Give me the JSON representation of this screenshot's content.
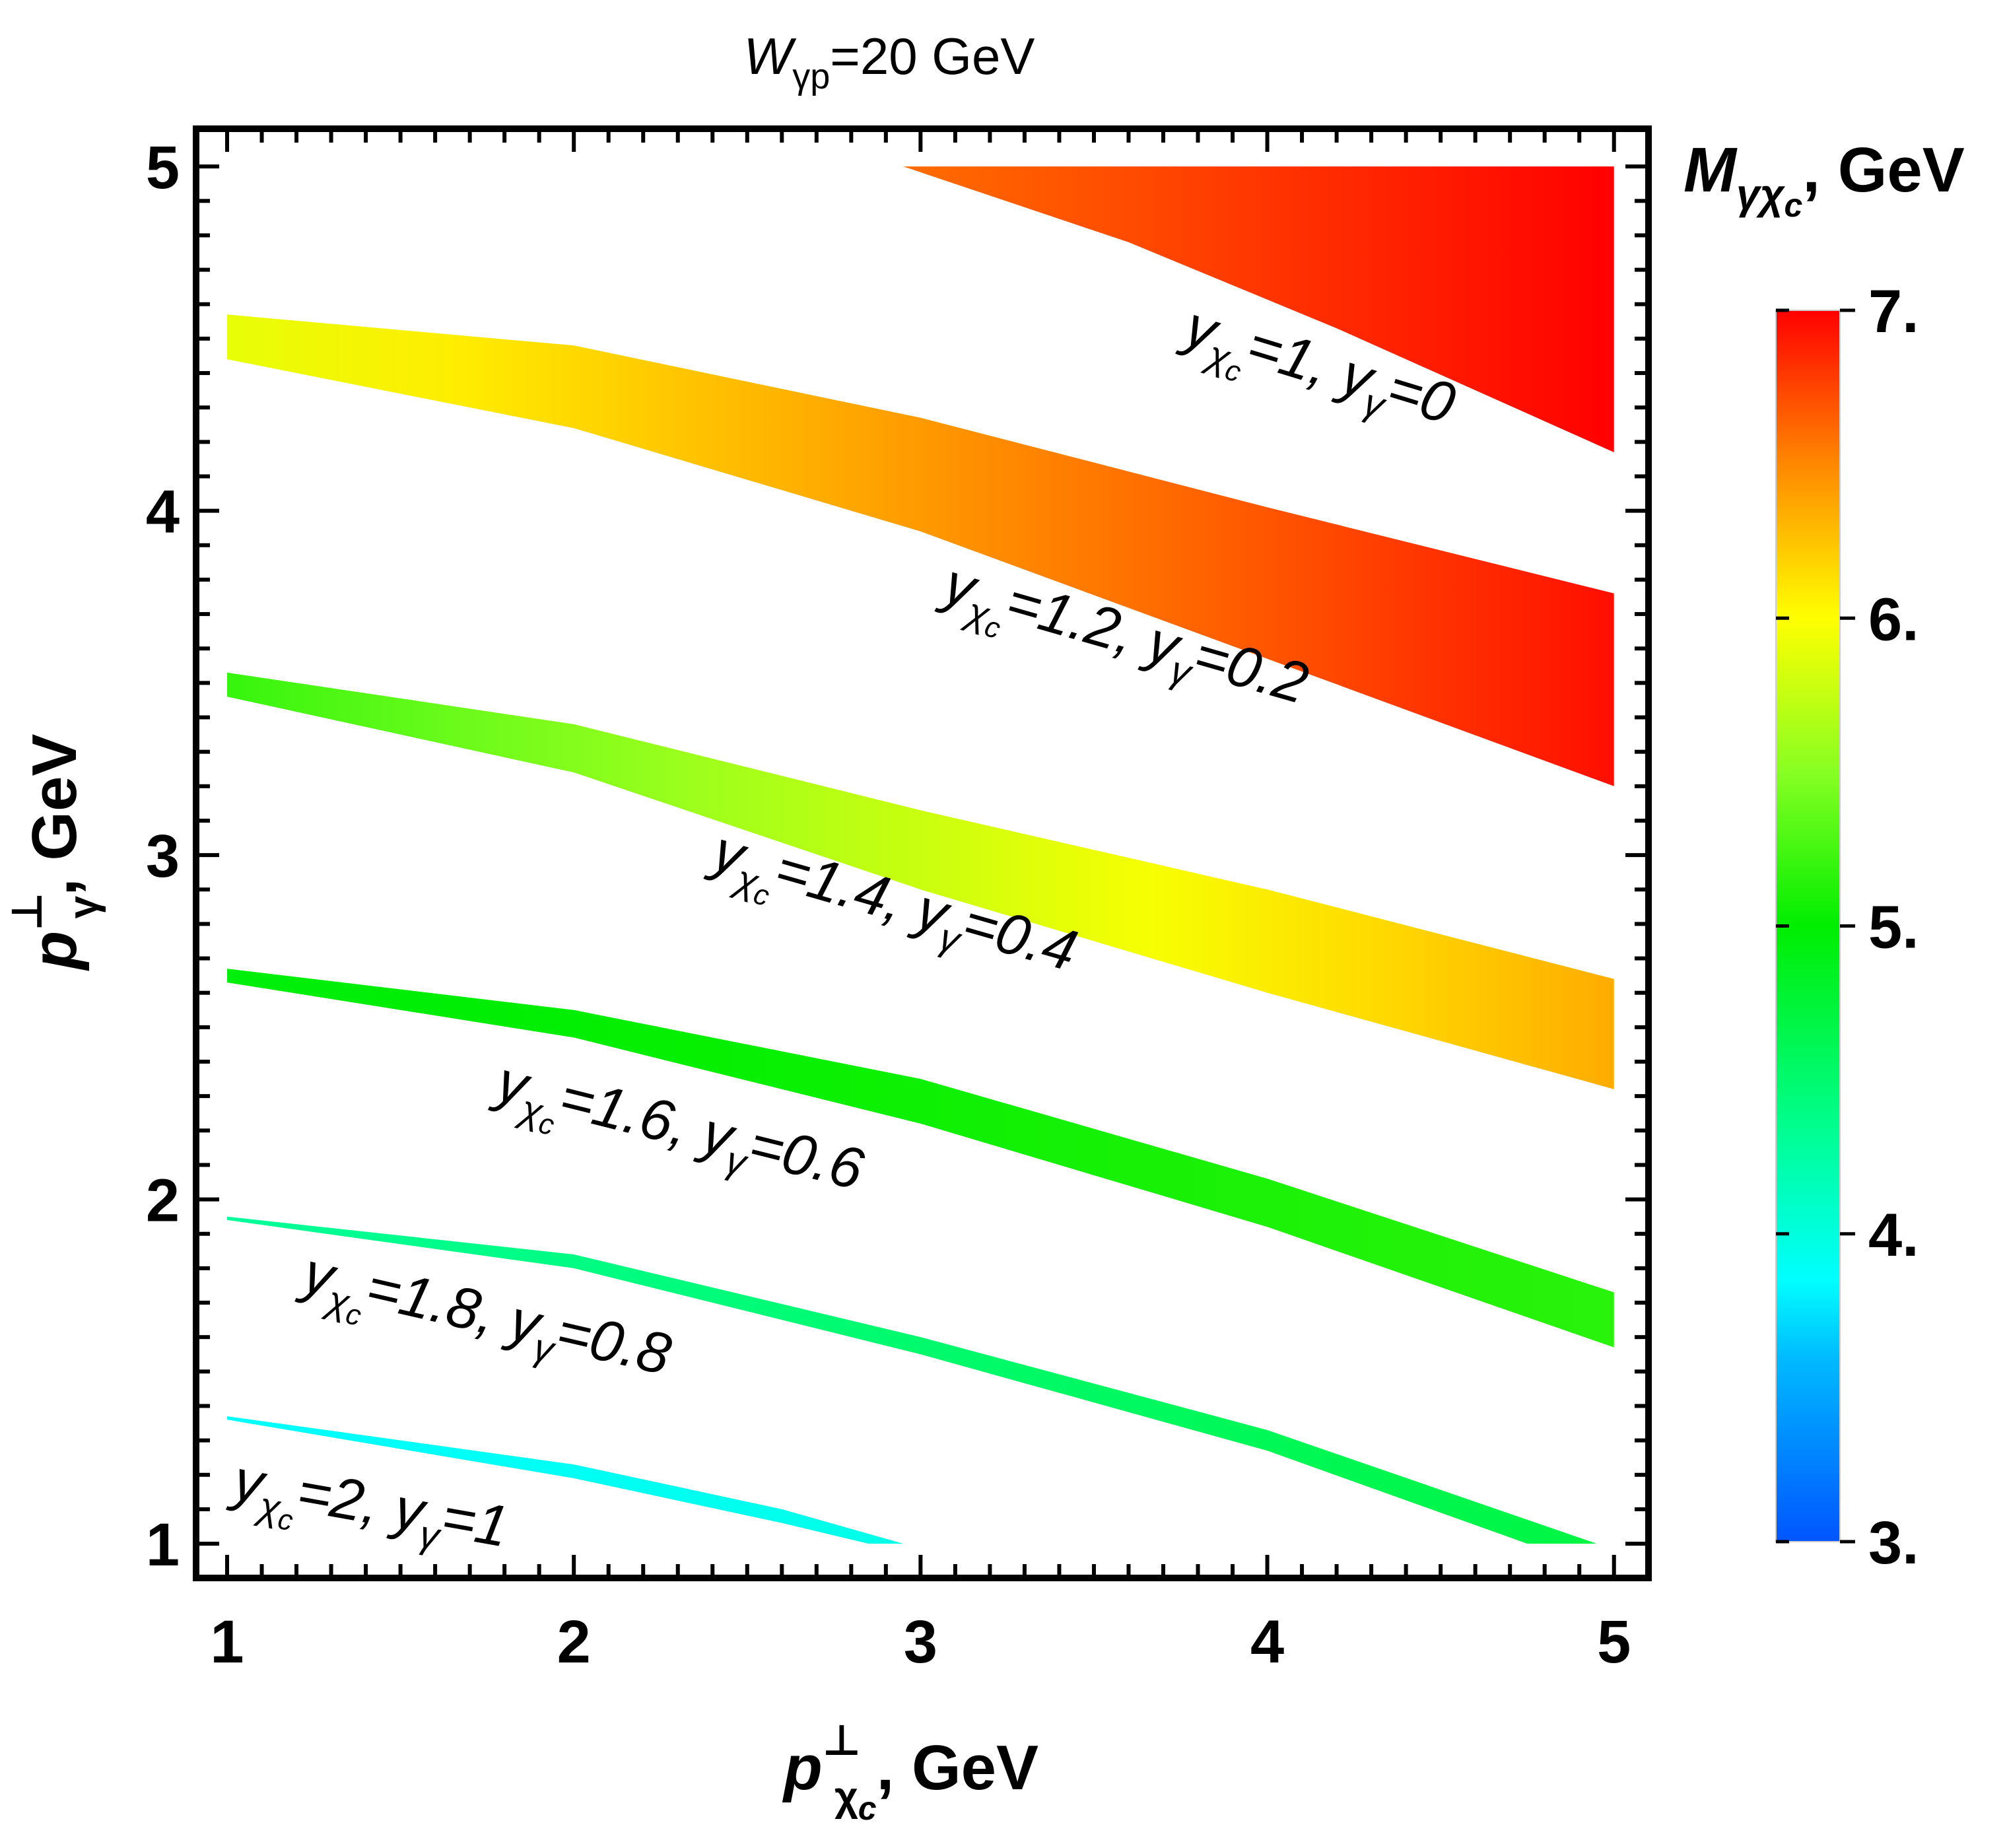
{
  "chart_data": {
    "type": "area",
    "title": "W_{γp}=20 GeV",
    "title_parts": {
      "main": "W",
      "sub": "γp",
      "rest": "=20 GeV"
    },
    "xlabel": "p⊥_{χc}, GeV",
    "xlabel_parts": {
      "main": "p",
      "sup": "⊥",
      "sub": "χ",
      "subsub": "c",
      "rest": ", GeV"
    },
    "ylabel": "p⊥_{γ}, GeV",
    "ylabel_parts": {
      "main": "p",
      "sup": "⊥",
      "sub": "γ",
      "rest": ", GeV"
    },
    "xlim": [
      0.92,
      5.09
    ],
    "ylim": [
      0.91,
      5.1
    ],
    "x_ticks": [
      1,
      2,
      3,
      4,
      5
    ],
    "x_tick_labels": [
      "1",
      "2",
      "3",
      "4",
      "5"
    ],
    "y_ticks": [
      1,
      2,
      3,
      4,
      5
    ],
    "y_tick_labels": [
      "1",
      "2",
      "3",
      "4",
      "5"
    ],
    "colorbar": {
      "title": "M_{γχc}, GeV",
      "title_parts": {
        "main": "M",
        "sub": "γχ",
        "subsub": "c",
        "rest": ", GeV"
      },
      "range": [
        3,
        7
      ],
      "ticks": [
        3,
        4,
        5,
        6,
        7
      ],
      "tick_labels": [
        "3.",
        "4.",
        "5.",
        "6.",
        "7."
      ],
      "stops": [
        {
          "value": 3.0,
          "color": "#0055ff"
        },
        {
          "value": 3.6,
          "color": "#00bbff"
        },
        {
          "value": 3.85,
          "color": "#00ffff"
        },
        {
          "value": 4.3,
          "color": "#00ff99"
        },
        {
          "value": 5.0,
          "color": "#00ee00"
        },
        {
          "value": 5.5,
          "color": "#88ff22"
        },
        {
          "value": 6.0,
          "color": "#ffff00"
        },
        {
          "value": 6.5,
          "color": "#ff8800"
        },
        {
          "value": 7.0,
          "color": "#ff0000"
        }
      ]
    },
    "bands": [
      {
        "label": "y_{χc}=1, y_{γ}=0",
        "label_parts": {
          "ychi": "1",
          "ygam": "0"
        },
        "upper": [
          [
            2.95,
            5.0
          ],
          [
            5.0,
            5.0
          ]
        ],
        "lower": [
          [
            2.95,
            5.0
          ],
          [
            3.6,
            4.78
          ],
          [
            4.2,
            4.53
          ],
          [
            5.0,
            4.17
          ]
        ],
        "mass_left": 6.6,
        "mass_right": 7.0
      },
      {
        "label": "y_{χc}=1.2, y_{γ}=0.2",
        "label_parts": {
          "ychi": "1.2",
          "ygam": "0.2"
        },
        "upper": [
          [
            1.0,
            4.57
          ],
          [
            2.0,
            4.48
          ],
          [
            3.0,
            4.27
          ],
          [
            4.0,
            4.01
          ],
          [
            5.0,
            3.76
          ]
        ],
        "lower": [
          [
            1.0,
            4.44
          ],
          [
            2.0,
            4.24
          ],
          [
            3.0,
            3.94
          ],
          [
            4.0,
            3.57
          ],
          [
            5.0,
            3.2
          ]
        ],
        "mass_left": 5.9,
        "mass_right": 6.95
      },
      {
        "label": "y_{χc}=1.4, y_{γ}=0.4",
        "label_parts": {
          "ychi": "1.4",
          "ygam": "0.4"
        },
        "upper": [
          [
            1.0,
            3.53
          ],
          [
            2.0,
            3.38
          ],
          [
            3.0,
            3.13
          ],
          [
            4.0,
            2.9
          ],
          [
            5.0,
            2.64
          ]
        ],
        "lower": [
          [
            1.0,
            3.46
          ],
          [
            2.0,
            3.24
          ],
          [
            3.0,
            2.9
          ],
          [
            4.0,
            2.6
          ],
          [
            5.0,
            2.32
          ]
        ],
        "mass_left": 5.2,
        "mass_right": 6.35
      },
      {
        "label": "y_{χc}=1.6, y_{γ}=0.6",
        "label_parts": {
          "ychi": "1.6",
          "ygam": "0.6"
        },
        "upper": [
          [
            1.0,
            2.67
          ],
          [
            2.0,
            2.55
          ],
          [
            3.0,
            2.35
          ],
          [
            4.0,
            2.06
          ],
          [
            5.0,
            1.73
          ]
        ],
        "lower": [
          [
            1.0,
            2.63
          ],
          [
            2.0,
            2.47
          ],
          [
            3.0,
            2.22
          ],
          [
            4.0,
            1.92
          ],
          [
            5.0,
            1.57
          ]
        ],
        "mass_left": 4.95,
        "mass_right": 5.15
      },
      {
        "label": "y_{χc}=1.8, y_{γ}=0.8",
        "label_parts": {
          "ychi": "1.8",
          "ygam": "0.8"
        },
        "upper": [
          [
            1.0,
            1.95
          ],
          [
            2.0,
            1.84
          ],
          [
            3.0,
            1.6
          ],
          [
            4.0,
            1.33
          ],
          [
            4.95,
            1.0
          ]
        ],
        "lower": [
          [
            1.0,
            1.94
          ],
          [
            2.0,
            1.8
          ],
          [
            3.0,
            1.55
          ],
          [
            4.0,
            1.27
          ],
          [
            4.75,
            1.0
          ]
        ],
        "mass_left": 4.3,
        "mass_right": 4.7
      },
      {
        "label": "y_{χc}=2, y_{γ}=1",
        "label_parts": {
          "ychi": "2",
          "ygam": "1"
        },
        "upper": [
          [
            1.0,
            1.37
          ],
          [
            2.0,
            1.23
          ],
          [
            2.6,
            1.1
          ],
          [
            2.95,
            1.0
          ]
        ],
        "lower": [
          [
            1.0,
            1.36
          ],
          [
            2.0,
            1.19
          ],
          [
            2.6,
            1.06
          ],
          [
            2.85,
            1.0
          ]
        ],
        "mass_left": 3.85,
        "mass_right": 3.95
      }
    ]
  }
}
